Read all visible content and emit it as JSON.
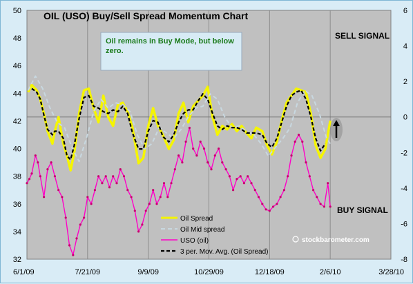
{
  "chart_data": {
    "type": "line",
    "title": "OIL (USO) Buy/Sell Spread Momentum Chart",
    "annotation": [
      "Oil remains in Buy Mode, but below",
      "zero."
    ],
    "sell_label": "SELL SIGNAL",
    "buy_label": "BUY SIGNAL",
    "watermark": "stockbarometer.com",
    "x_ticks": [
      "6/1/09",
      "7/21/09",
      "9/9/09",
      "10/29/09",
      "12/18/09",
      "2/6/10",
      "3/28/10"
    ],
    "x_domain": [
      "6/1/09",
      "3/28/10"
    ],
    "y_left_ticks": [
      "32",
      "34",
      "36",
      "38",
      "40",
      "42",
      "44",
      "46",
      "48",
      "50"
    ],
    "y_right_ticks": [
      "-8",
      "-6",
      "-4",
      "-2",
      "0",
      "2",
      "4",
      "6"
    ],
    "ylim_left": [
      32,
      50
    ],
    "ylim_right": [
      -8,
      6
    ],
    "grid": "vertical",
    "legend_position": "bottom-center",
    "colors": {
      "oil_spread": "#f5f500",
      "oil_mid": "#c8d8e0",
      "uso": "#ff00c8",
      "mov_avg": "#000000",
      "plot_bg": "#c0c0c0",
      "annotation_box": "#d7ebf5"
    },
    "series": [
      {
        "name": "Oil Spread",
        "axis": "right",
        "x": [
          "6/2/09",
          "6/5/09",
          "6/9/09",
          "6/12/09",
          "6/15/09",
          "6/18/09",
          "6/22/09",
          "6/24/09",
          "6/27/09",
          "7/1/09",
          "7/4/09",
          "7/7/09",
          "7/10/09",
          "7/14/09",
          "7/18/09",
          "7/22/09",
          "7/26/09",
          "7/30/09",
          "8/3/09",
          "8/7/09",
          "8/11/09",
          "8/15/09",
          "8/19/09",
          "8/23/09",
          "8/27/09",
          "9/1/09",
          "9/5/09",
          "9/9/09",
          "9/13/09",
          "9/17/09",
          "9/21/09",
          "9/26/09",
          "9/30/09",
          "10/4/09",
          "10/8/09",
          "10/12/09",
          "10/16/09",
          "10/20/09",
          "10/24/09",
          "10/28/09",
          "11/1/09",
          "11/5/09",
          "11/9/09",
          "11/13/09",
          "11/17/09",
          "11/21/09",
          "11/25/09",
          "11/29/09",
          "12/3/09",
          "12/7/09",
          "12/12/09",
          "12/16/09",
          "12/20/09",
          "12/24/09",
          "12/28/09",
          "1/1/10",
          "1/5/10",
          "1/9/10",
          "1/13/10",
          "1/17/10",
          "1/21/10",
          "1/25/10",
          "1/29/10",
          "2/2/10",
          "2/6/10"
        ],
        "values": [
          1.4,
          1.8,
          1.5,
          1.0,
          0.2,
          -0.8,
          -1.5,
          -0.8,
          0.0,
          -1.5,
          -2.2,
          -3.0,
          -2.0,
          0.2,
          1.5,
          1.6,
          0.5,
          -0.3,
          1.2,
          0.0,
          -0.5,
          0.7,
          0.8,
          0.3,
          -0.6,
          -2.6,
          -2.3,
          -0.5,
          0.5,
          -0.5,
          -1.0,
          -1.8,
          -1.3,
          0.2,
          0.8,
          -0.3,
          0.6,
          0.9,
          1.2,
          1.7,
          0.0,
          -1.0,
          -0.5,
          -0.7,
          -0.4,
          -0.8,
          -0.5,
          -0.9,
          -1.2,
          -0.6,
          -0.8,
          -1.6,
          -2.1,
          -1.4,
          -0.2,
          0.8,
          1.2,
          1.6,
          1.5,
          1.4,
          0.2,
          -1.6,
          -2.3,
          -1.8,
          -0.2
        ]
      },
      {
        "name": "Oil Mid spread",
        "axis": "right",
        "x": [
          "6/2/09",
          "6/8/09",
          "6/14/09",
          "6/20/09",
          "6/26/09",
          "7/2/09",
          "7/8/09",
          "7/14/09",
          "7/20/09",
          "7/26/09",
          "8/1/09",
          "8/7/09",
          "8/13/09",
          "8/19/09",
          "8/25/09",
          "8/31/09",
          "9/6/09",
          "9/12/09",
          "9/18/09",
          "9/24/09",
          "9/30/09",
          "10/6/09",
          "10/12/09",
          "10/18/09",
          "10/24/09",
          "10/30/09",
          "11/5/09",
          "11/11/09",
          "11/17/09",
          "11/23/09",
          "11/29/09",
          "12/5/09",
          "12/11/09",
          "12/17/09",
          "12/23/09",
          "12/29/09",
          "1/4/10",
          "1/10/10",
          "1/16/10",
          "1/22/10",
          "1/28/10",
          "2/3/10",
          "2/6/10"
        ],
        "values": [
          1.5,
          2.3,
          1.6,
          0.5,
          -0.3,
          -0.6,
          -1.7,
          -2.5,
          -1.2,
          0.3,
          1.0,
          0.5,
          0.8,
          0.7,
          0.3,
          -1.0,
          -1.8,
          -1.5,
          -0.6,
          -0.9,
          -1.2,
          -0.7,
          0.0,
          0.5,
          0.6,
          1.3,
          1.0,
          0.0,
          -0.6,
          -0.5,
          -0.8,
          -1.0,
          -1.5,
          -2.2,
          -1.7,
          -1.2,
          -0.6,
          0.8,
          1.5,
          1.2,
          0.2,
          -1.2,
          -1.5
        ]
      },
      {
        "name": "USO (oil)",
        "axis": "left",
        "x": [
          "6/1/09",
          "6/3/09",
          "6/5/09",
          "6/8/09",
          "6/10/09",
          "6/12/09",
          "6/15/09",
          "6/18/09",
          "6/21/09",
          "6/24/09",
          "6/27/09",
          "6/30/09",
          "7/3/09",
          "7/6/09",
          "7/9/09",
          "7/12/09",
          "7/15/09",
          "7/18/09",
          "7/21/09",
          "7/24/09",
          "7/27/09",
          "7/30/09",
          "8/2/09",
          "8/5/09",
          "8/8/09",
          "8/11/09",
          "8/14/09",
          "8/17/09",
          "8/20/09",
          "8/23/09",
          "8/26/09",
          "8/29/09",
          "9/1/09",
          "9/4/09",
          "9/7/09",
          "9/10/09",
          "9/13/09",
          "9/16/09",
          "9/19/09",
          "9/22/09",
          "9/25/09",
          "9/28/09",
          "10/1/09",
          "10/4/09",
          "10/7/09",
          "10/10/09",
          "10/13/09",
          "10/16/09",
          "10/19/09",
          "10/22/09",
          "10/25/09",
          "10/28/09",
          "10/31/09",
          "11/3/09",
          "11/6/09",
          "11/9/09",
          "11/12/09",
          "11/15/09",
          "11/18/09",
          "11/21/09",
          "11/24/09",
          "11/27/09",
          "11/30/09",
          "12/3/09",
          "12/6/09",
          "12/9/09",
          "12/12/09",
          "12/15/09",
          "12/18/09",
          "12/21/09",
          "12/24/09",
          "12/27/09",
          "12/30/09",
          "1/2/10",
          "1/5/10",
          "1/8/10",
          "1/11/10",
          "1/14/10",
          "1/17/10",
          "1/20/10",
          "1/23/10",
          "1/26/10",
          "1/29/10",
          "2/1/10",
          "2/4/10",
          "2/6/10"
        ],
        "values": [
          37.5,
          37.8,
          38.2,
          39.5,
          39.0,
          38.0,
          36.5,
          38.5,
          39.0,
          38.0,
          37.0,
          36.5,
          35.0,
          33.0,
          32.3,
          33.5,
          34.5,
          35.0,
          36.5,
          36.0,
          37.0,
          38.0,
          37.5,
          38.0,
          37.2,
          38.0,
          37.5,
          38.5,
          38.0,
          37.0,
          36.5,
          35.5,
          34.0,
          34.5,
          35.5,
          36.0,
          37.0,
          36.0,
          36.5,
          37.5,
          36.5,
          37.5,
          38.5,
          39.5,
          39.0,
          40.5,
          41.5,
          40.0,
          39.5,
          40.5,
          40.0,
          39.0,
          38.5,
          39.5,
          40.0,
          39.0,
          38.5,
          38.0,
          37.0,
          37.8,
          38.0,
          37.5,
          38.0,
          37.5,
          37.0,
          36.5,
          36.0,
          35.6,
          35.5,
          35.8,
          36.0,
          36.5,
          37.0,
          38.0,
          39.5,
          40.5,
          41.0,
          40.5,
          39.0,
          38.0,
          37.0,
          36.5,
          36.0,
          35.8,
          37.5,
          35.8
        ]
      },
      {
        "name": "3 per. Mov. Avg. (Oil Spread)",
        "axis": "right",
        "x": [
          "6/5/09",
          "6/9/09",
          "6/12/09",
          "6/15/09",
          "6/18/09",
          "6/22/09",
          "6/24/09",
          "6/27/09",
          "7/1/09",
          "7/4/09",
          "7/7/09",
          "7/10/09",
          "7/14/09",
          "7/18/09",
          "7/22/09",
          "7/26/09",
          "7/30/09",
          "8/3/09",
          "8/7/09",
          "8/11/09",
          "8/15/09",
          "8/19/09",
          "8/23/09",
          "8/27/09",
          "9/1/09",
          "9/5/09",
          "9/9/09",
          "9/13/09",
          "9/17/09",
          "9/21/09",
          "9/26/09",
          "9/30/09",
          "10/4/09",
          "10/8/09",
          "10/12/09",
          "10/16/09",
          "10/20/09",
          "10/24/09",
          "10/28/09",
          "11/1/09",
          "11/5/09",
          "11/9/09",
          "11/13/09",
          "11/17/09",
          "11/21/09",
          "11/25/09",
          "11/29/09",
          "12/3/09",
          "12/7/09",
          "12/12/09",
          "12/16/09",
          "12/20/09",
          "12/24/09",
          "12/28/09",
          "1/1/10",
          "1/5/10",
          "1/9/10",
          "1/13/10",
          "1/17/10",
          "1/21/10",
          "1/25/10",
          "1/29/10",
          "2/2/10"
        ],
        "values": [
          1.6,
          1.4,
          1.0,
          0.1,
          -0.7,
          -1.0,
          -0.8,
          -0.8,
          -1.2,
          -2.2,
          -2.4,
          -1.6,
          -0.1,
          1.1,
          1.2,
          0.6,
          0.5,
          0.3,
          0.2,
          0.4,
          0.3,
          0.6,
          0.2,
          -0.9,
          -1.8,
          -1.8,
          -0.8,
          -0.2,
          -0.3,
          -1.1,
          -1.4,
          -1.0,
          -0.3,
          0.2,
          0.4,
          0.4,
          0.9,
          1.3,
          1.0,
          0.2,
          -0.5,
          -0.7,
          -0.5,
          -0.6,
          -0.6,
          -0.7,
          -0.9,
          -0.9,
          -0.9,
          -1.0,
          -1.5,
          -1.7,
          -1.2,
          -0.3,
          0.6,
          1.2,
          1.4,
          1.5,
          1.0,
          0.0,
          -1.2,
          -1.9,
          -1.5
        ]
      }
    ]
  }
}
